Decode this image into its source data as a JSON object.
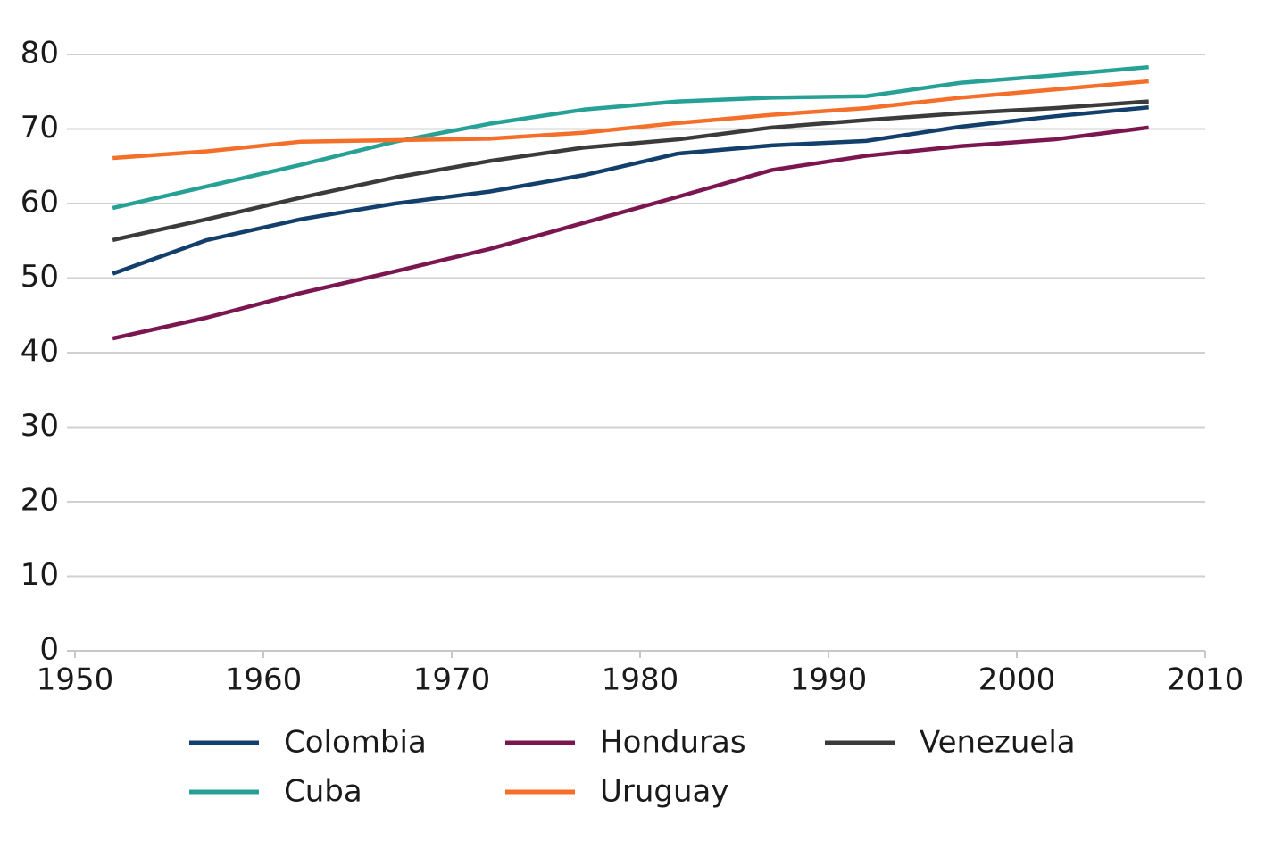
{
  "chart_data": {
    "type": "line",
    "x": [
      1952,
      1957,
      1962,
      1967,
      1972,
      1977,
      1982,
      1987,
      1992,
      1997,
      2002,
      2007
    ],
    "series": [
      {
        "name": "Colombia",
        "color": "#123f6b",
        "values": [
          50.6,
          55.1,
          57.9,
          60.0,
          61.6,
          63.8,
          66.7,
          67.8,
          68.4,
          70.3,
          71.7,
          72.9
        ]
      },
      {
        "name": "Cuba",
        "color": "#27a095",
        "values": [
          59.4,
          62.3,
          65.2,
          68.3,
          70.7,
          72.6,
          73.7,
          74.2,
          74.4,
          76.2,
          77.2,
          78.3
        ]
      },
      {
        "name": "Honduras",
        "color": "#7b1650",
        "values": [
          41.9,
          44.7,
          48.0,
          50.9,
          53.9,
          57.4,
          60.9,
          64.5,
          66.4,
          67.7,
          68.6,
          70.2
        ]
      },
      {
        "name": "Uruguay",
        "color": "#f36f2a",
        "values": [
          66.1,
          67.0,
          68.3,
          68.5,
          68.7,
          69.5,
          70.8,
          71.9,
          72.8,
          74.2,
          75.3,
          76.4
        ]
      },
      {
        "name": "Venezuela",
        "color": "#3b3b3b",
        "values": [
          55.1,
          57.9,
          60.8,
          63.5,
          65.7,
          67.5,
          68.6,
          70.2,
          71.2,
          72.1,
          72.8,
          73.7
        ]
      }
    ],
    "xlim": [
      1950,
      2010
    ],
    "xticks": [
      1950,
      1960,
      1970,
      1980,
      1990,
      2000,
      2010
    ],
    "ylim": [
      0,
      80
    ],
    "yticks": [
      0,
      10,
      20,
      30,
      40,
      50,
      60,
      70,
      80
    ],
    "grid": true,
    "legend": "bottom"
  }
}
